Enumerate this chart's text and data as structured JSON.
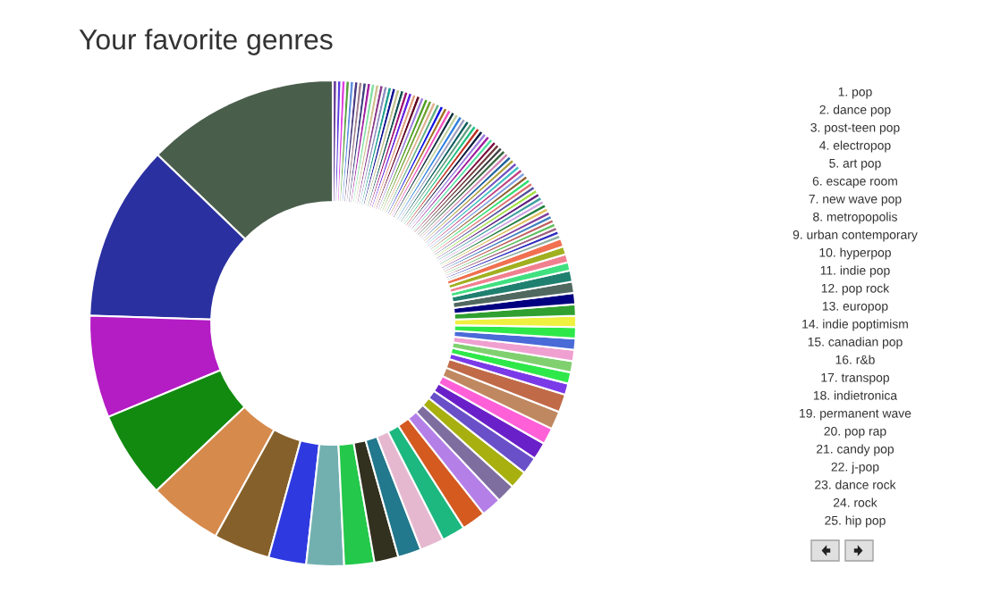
{
  "chart_data": {
    "type": "donut",
    "title": "Your favorite genres",
    "annotations": [
      "1. pop",
      "2. dance pop",
      "3. post-teen pop",
      "4. electropop",
      "5. art pop",
      "6. escape room",
      "7. new wave pop",
      "8. metropopolis",
      "9. urban contemporary",
      "10. hyperpop",
      "11. indie pop",
      "12. pop rock",
      "13. europop",
      "14. indie poptimism",
      "15. canadian pop",
      "16. r&b",
      "17. transpop",
      "18. indietronica",
      "19. permanent wave",
      "20. pop rap",
      "21. candy pop",
      "22. j-pop",
      "23. dance rock",
      "24. rock",
      "25. hip pop"
    ],
    "categories": [
      null,
      null,
      null,
      null,
      null,
      null,
      null,
      null,
      null,
      null,
      null,
      null,
      null,
      null,
      null,
      null,
      null,
      null,
      null,
      null,
      null,
      null,
      null,
      null,
      null,
      null,
      null,
      null,
      null,
      null,
      null,
      null,
      null,
      null,
      null,
      null,
      null,
      null,
      null,
      null,
      null,
      null,
      null,
      null,
      null,
      null,
      null,
      null,
      null,
      null,
      null,
      null,
      null,
      null,
      null,
      null,
      null,
      null,
      null,
      null,
      null,
      null,
      null,
      null,
      null,
      null,
      null,
      null,
      null,
      null,
      null,
      null,
      null,
      null,
      null,
      null,
      null,
      null,
      null,
      null,
      null,
      null,
      null,
      null,
      null,
      null,
      null,
      null,
      null,
      null,
      null,
      null,
      null,
      null,
      null,
      null,
      null,
      null,
      null,
      null,
      null,
      null,
      null,
      null,
      null,
      null
    ],
    "values": [
      12.8,
      11.7,
      6.8,
      5.8,
      4.9,
      3.75,
      2.5,
      2.5,
      2.0,
      1.6,
      1.55,
      1.6,
      1.55,
      1.6,
      1.35,
      1.25,
      1.2,
      1.15,
      1.15,
      1.1,
      1.2,
      1.2,
      0.75,
      0.75,
      0.75,
      0.75,
      0.75,
      0.75,
      0.75,
      0.75,
      0.75,
      0.75,
      0.75,
      0.545,
      0.545,
      0.545,
      0.545,
      0.28,
      0.28,
      0.28,
      0.28,
      0.28,
      0.28,
      0.28,
      0.28,
      0.28,
      0.28,
      0.28,
      0.28,
      0.28,
      0.28,
      0.28,
      0.28,
      0.28,
      0.28,
      0.28,
      0.28,
      0.28,
      0.28,
      0.28,
      0.28,
      0.28,
      0.28,
      0.28,
      0.28,
      0.28,
      0.28,
      0.28,
      0.28,
      0.28,
      0.28,
      0.28,
      0.28,
      0.28,
      0.28,
      0.28,
      0.28,
      0.28,
      0.28,
      0.28,
      0.28,
      0.28,
      0.28,
      0.28,
      0.28,
      0.28,
      0.28,
      0.28,
      0.28,
      0.28,
      0.28,
      0.28,
      0.28,
      0.28,
      0.28,
      0.28,
      0.28,
      0.28,
      0.28,
      0.28,
      0.28,
      0.28,
      0.28,
      0.28,
      0.28,
      0.28
    ],
    "colors": [
      "#4a5e4c",
      "#2a30a0",
      "#b41cc4",
      "#128a10",
      "#d68a4c",
      "#86602a",
      "#2e3ae0",
      "#72b0b0",
      "#24c84a",
      "#32301e",
      "#22788c",
      "#e6b8d0",
      "#1cb880",
      "#d45a20",
      "#b480e8",
      "#7e6ea0",
      "#a8b010",
      "#6a50c8",
      "#6a20c8",
      "#ff60d8",
      "#c08860",
      "#c06a48",
      "#7a3ae8",
      "#2ee84a",
      "#80d070",
      "#f0a0d0",
      "#4a6ad8",
      "#2ee84a",
      "#f0f040",
      "#30a030",
      "#000080",
      "#506860",
      "#208070",
      "#40e080",
      "#f08090",
      "#a0b020",
      "#f07050",
      "#90b0a0",
      "#3030c0",
      "#a06080",
      "#60c060",
      "#c06060",
      "#4080c0",
      "#8040a0",
      "#e0c060",
      "#208040",
      "#d0a0e0",
      "#40a0a0",
      "#602080",
      "#a0e040",
      "#5050a0",
      "#e07070",
      "#30e070",
      "#906030",
      "#80a0e0",
      "#c04080",
      "#40c0c0",
      "#7050c0",
      "#b0a040",
      "#2060a0",
      "#d080b0",
      "#3a6a40",
      "#404040",
      "#704040",
      "#801040",
      "#50e0a0",
      "#a020a0",
      "#a080e0",
      "#102040",
      "#c03020",
      "#20c080",
      "#60a080",
      "#106060",
      "#a0a0c0",
      "#3080e0",
      "#c0d0a0",
      "#103040",
      "#f050c0",
      "#a07020",
      "#1010e0",
      "#60b080",
      "#e0b090",
      "#70a030",
      "#50a020",
      "#a080e0",
      "#600020",
      "#e0a080",
      "#6020e0",
      "#a01070",
      "#105050",
      "#c0c090",
      "#101090",
      "#20a090",
      "#9090c0",
      "#8a3a8a",
      "#d0c090",
      "#80e0a0",
      "#a020a0",
      "#404080",
      "#a08090",
      "#4a3a80",
      "#6090e0",
      "#5aa040",
      "#e040e0",
      "#5b3de0",
      "#6a3d9a"
    ]
  }
}
